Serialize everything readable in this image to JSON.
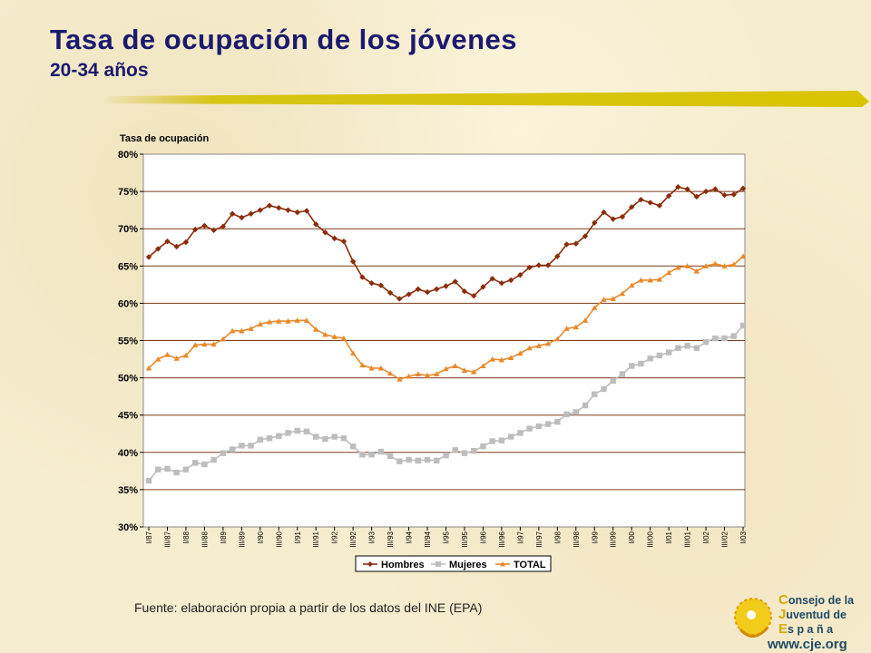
{
  "title": "Tasa de ocupación de los jóvenes",
  "subtitle": "20-34 años",
  "source": "Fuente: elaboración propia a partir de los datos del INE (EPA)",
  "logo": {
    "line1_cap": "C",
    "line1_rest": "onsejo de la",
    "line2_cap": "J",
    "line2_rest": "uventud de",
    "line3_cap": "E",
    "line3_rest": "s p a ñ a",
    "url": "www.cje.org"
  },
  "chart_data": {
    "type": "line",
    "ylabel": "Tasa de ocupación",
    "ylim": [
      30,
      80
    ],
    "yticks": [
      "30%",
      "35%",
      "40%",
      "45%",
      "50%",
      "55%",
      "60%",
      "65%",
      "70%",
      "75%",
      "80%"
    ],
    "xticks": [
      "I/87",
      "III/87",
      "I/88",
      "III/88",
      "I/89",
      "III/89",
      "I/90",
      "III/90",
      "I/91",
      "III/91",
      "I/92",
      "III/92",
      "I/93",
      "III/93",
      "I/94",
      "III/94",
      "I/95",
      "III/95",
      "I/96",
      "III/96",
      "I/97",
      "III/97",
      "I/98",
      "III/98",
      "I/99",
      "III/99",
      "I/00",
      "III/00",
      "I/01",
      "III/01",
      "I/02",
      "III/02",
      "I/03"
    ],
    "grid": true,
    "legend": "bottom",
    "series": [
      {
        "name": "Hombres",
        "color": "#8b2c0a",
        "marker": "diamond",
        "values": [
          66.2,
          67.3,
          68.3,
          67.6,
          68.2,
          69.9,
          70.4,
          69.8,
          70.3,
          72.0,
          71.5,
          72.0,
          72.5,
          73.1,
          72.8,
          72.5,
          72.2,
          72.4,
          70.6,
          69.5,
          68.7,
          68.3,
          65.6,
          63.5,
          62.7,
          62.4,
          61.4,
          60.6,
          61.2,
          61.9,
          61.5,
          61.9,
          62.3,
          62.9,
          61.6,
          61.0,
          62.2,
          63.3,
          62.7,
          63.1,
          63.8,
          64.8,
          65.1,
          65.1,
          66.3,
          67.9,
          68.0,
          69.0,
          70.8,
          72.2,
          71.3,
          71.6,
          72.9,
          73.9,
          73.5,
          73.1,
          74.4,
          75.6,
          75.3,
          74.3,
          75.0,
          75.3,
          74.5,
          74.6,
          75.4
        ]
      },
      {
        "name": "Mujeres",
        "color": "#bdbdbd",
        "marker": "square",
        "values": [
          36.2,
          37.7,
          37.8,
          37.3,
          37.7,
          38.6,
          38.4,
          39.0,
          39.9,
          40.4,
          40.9,
          40.9,
          41.7,
          41.9,
          42.2,
          42.6,
          42.9,
          42.8,
          42.1,
          41.8,
          42.1,
          41.9,
          40.8,
          39.7,
          39.7,
          40.1,
          39.5,
          38.8,
          39.0,
          38.9,
          39.0,
          38.9,
          39.6,
          40.3,
          39.9,
          40.2,
          40.8,
          41.5,
          41.6,
          42.1,
          42.6,
          43.2,
          43.5,
          43.8,
          44.1,
          45.1,
          45.4,
          46.3,
          47.8,
          48.5,
          49.6,
          50.5,
          51.6,
          51.9,
          52.6,
          53.0,
          53.4,
          54.0,
          54.3,
          54.0,
          54.8,
          55.3,
          55.3,
          55.6,
          57.0
        ]
      },
      {
        "name": "TOTAL",
        "color": "#e8892a",
        "marker": "triangle",
        "values": [
          51.3,
          52.5,
          53.1,
          52.6,
          53.0,
          54.4,
          54.5,
          54.5,
          55.2,
          56.3,
          56.3,
          56.6,
          57.2,
          57.5,
          57.6,
          57.6,
          57.7,
          57.7,
          56.5,
          55.8,
          55.5,
          55.3,
          53.3,
          51.7,
          51.3,
          51.3,
          50.6,
          49.8,
          50.2,
          50.5,
          50.3,
          50.5,
          51.2,
          51.6,
          51.0,
          50.8,
          51.6,
          52.5,
          52.4,
          52.7,
          53.3,
          54.0,
          54.3,
          54.6,
          55.2,
          56.6,
          56.8,
          57.7,
          59.4,
          60.5,
          60.6,
          61.3,
          62.4,
          63.1,
          63.1,
          63.2,
          64.1,
          64.8,
          65.0,
          64.3,
          65.0,
          65.3,
          65.0,
          65.2,
          66.3
        ]
      }
    ]
  }
}
